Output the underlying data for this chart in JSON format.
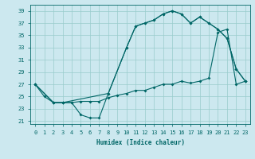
{
  "xlabel": "Humidex (Indice chaleur)",
  "bg_color": "#cce8ef",
  "grid_color": "#99cccc",
  "line_color": "#006666",
  "xlim": [
    -0.5,
    23.5
  ],
  "ylim": [
    20.5,
    40
  ],
  "yticks": [
    21,
    23,
    25,
    27,
    29,
    31,
    33,
    35,
    37,
    39
  ],
  "xticks": [
    0,
    1,
    2,
    3,
    4,
    5,
    6,
    7,
    8,
    9,
    10,
    11,
    12,
    13,
    14,
    15,
    16,
    17,
    18,
    19,
    20,
    21,
    22,
    23
  ],
  "line1_x": [
    0,
    1,
    2,
    3,
    4,
    5,
    6,
    7,
    8,
    10,
    11,
    12,
    13,
    14,
    15,
    16,
    17,
    18,
    19,
    20,
    21,
    22,
    23
  ],
  "line1_y": [
    27,
    25,
    24,
    24,
    24,
    22,
    21.5,
    21.5,
    25.5,
    33,
    36.5,
    37,
    37.5,
    38.5,
    39,
    38.5,
    37,
    38,
    37,
    36,
    34.5,
    29.5,
    27.5
  ],
  "line2_x": [
    0,
    2,
    3,
    4,
    5,
    6,
    7,
    8,
    9,
    10,
    11,
    12,
    13,
    14,
    15,
    16,
    17,
    18,
    19,
    20,
    21,
    22,
    23
  ],
  "line2_y": [
    27,
    24,
    24,
    24,
    24.2,
    24.2,
    24.2,
    24.8,
    25.2,
    25.5,
    26,
    26,
    26.5,
    27,
    27,
    27.5,
    27.2,
    27.5,
    28,
    35.5,
    36,
    27,
    27.5
  ],
  "line3_x": [
    0,
    2,
    3,
    8,
    10,
    11,
    12,
    13,
    14,
    15,
    16,
    17,
    18,
    19,
    20,
    21,
    22,
    23
  ],
  "line3_y": [
    27,
    24,
    24,
    25.5,
    33,
    36.5,
    37,
    37.5,
    38.5,
    39,
    38.5,
    37,
    38,
    37,
    36,
    34.5,
    29.5,
    27.5
  ]
}
